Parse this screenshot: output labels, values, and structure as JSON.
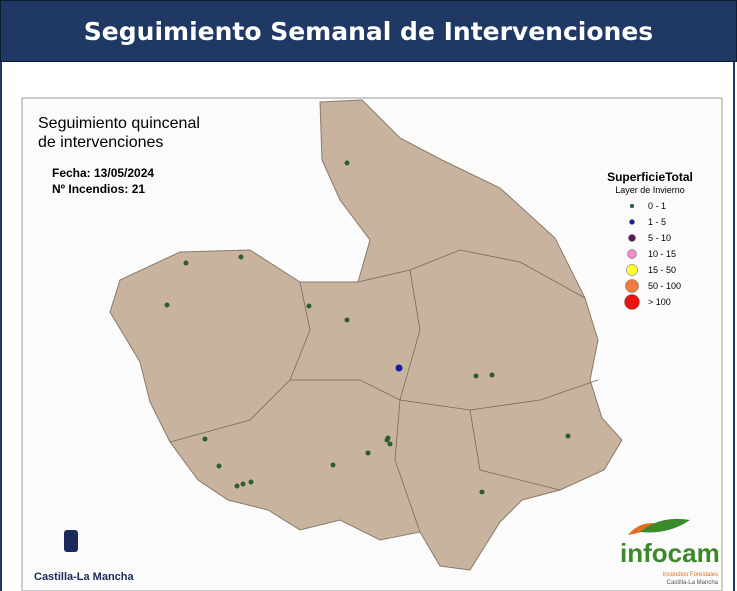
{
  "header": {
    "title": "Seguimiento Semanal de Intervenciones"
  },
  "map": {
    "title_line1": "Seguimiento quincenal",
    "title_line2": "de intervenciones",
    "date": "Fecha: 13/05/2024",
    "fires": "Nº Incendios: 21",
    "legend": {
      "title": "SuperficieTotal",
      "subtitle": "Layer de Invierno",
      "items": [
        {
          "label": "0 - 1",
          "color": "#2e5e2e"
        },
        {
          "label": "1 - 5",
          "color": "#1a1aa0"
        },
        {
          "label": "5 - 10",
          "color": "#5a1a5a"
        },
        {
          "label": "10 - 15",
          "color": "#f08ccc"
        },
        {
          "label": "15 - 50",
          "color": "#ffff33"
        },
        {
          "label": "50 - 100",
          "color": "#f07a40"
        },
        {
          "label": "> 100",
          "color": "#ee1111"
        }
      ]
    }
  },
  "logos": {
    "left": "Castilla-La Mancha",
    "right": "infocam",
    "right_sub1": "Incendios Forestales",
    "right_sub2": "Castilla-La Mancha"
  }
}
